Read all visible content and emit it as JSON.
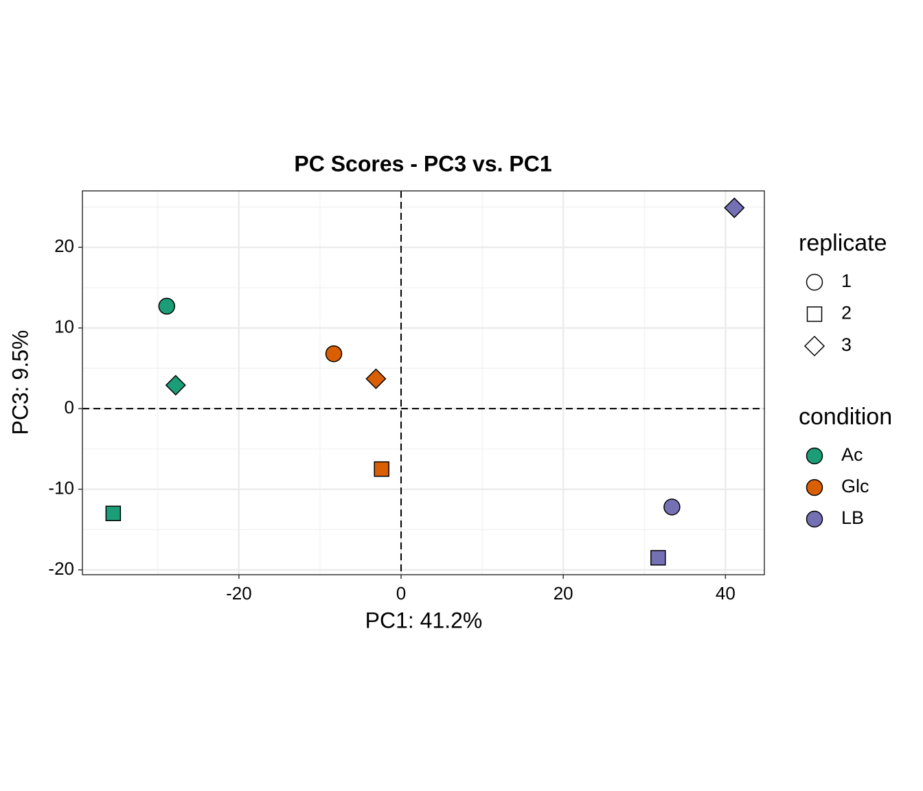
{
  "chart_data": {
    "type": "scatter",
    "title": "PC Scores - PC3 vs. PC1",
    "x_label": "PC1: 41.2%",
    "y_label": "PC3: 9.5%",
    "xlim": [
      -39.3,
      44.8
    ],
    "ylim": [
      -20.6,
      27.0
    ],
    "xticks": [
      -20,
      0,
      20,
      40
    ],
    "yticks": [
      -20,
      -10,
      0,
      10,
      20
    ],
    "x_minor_grid": [
      -30,
      -10,
      10,
      30
    ],
    "y_minor_grid": [
      -15,
      -5,
      5,
      15,
      25
    ],
    "grid": true,
    "hlines": [
      0
    ],
    "vlines": [
      0
    ],
    "shape_legend": {
      "title": "replicate",
      "labels": [
        "1",
        "2",
        "3"
      ],
      "shapes": [
        "circle",
        "square",
        "diamond"
      ]
    },
    "color_legend_title": "condition",
    "series": [
      {
        "name": "Ac",
        "color": "#1b9e77",
        "x": [
          -28.9,
          -35.5,
          -27.8
        ],
        "values": [
          12.7,
          -13.0,
          2.9
        ],
        "shapes": [
          "circle",
          "square",
          "diamond"
        ]
      },
      {
        "name": "Glc",
        "color": "#d95f02",
        "x": [
          -8.3,
          -2.4,
          -3.1
        ],
        "values": [
          6.8,
          -7.5,
          3.7
        ],
        "shapes": [
          "circle",
          "square",
          "diamond"
        ]
      },
      {
        "name": "LB",
        "color": "#7570b3",
        "x": [
          33.4,
          31.7,
          41.1
        ],
        "values": [
          -12.2,
          -18.5,
          24.9
        ],
        "shapes": [
          "circle",
          "square",
          "diamond"
        ]
      }
    ]
  }
}
